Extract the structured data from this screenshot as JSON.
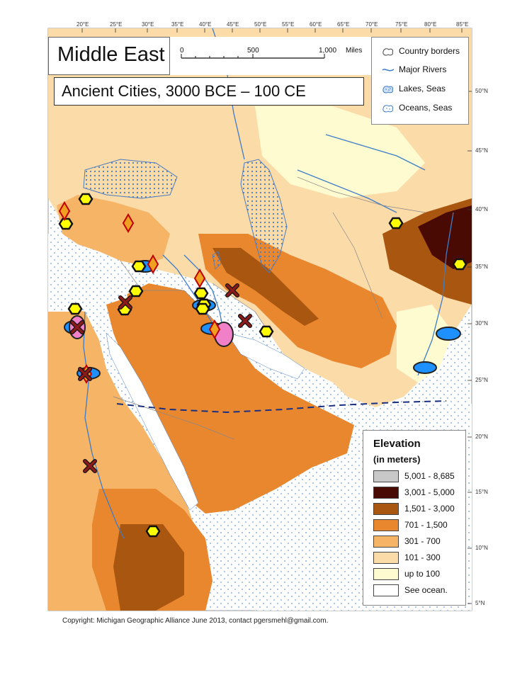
{
  "map": {
    "title": "Middle East",
    "subtitle": "Ancient Cities, 3000 BCE – 100 CE",
    "longitude_labels": [
      "20°E",
      "25°E",
      "30°E",
      "35°E",
      "40°E",
      "45°E",
      "50°E",
      "55°E",
      "60°E",
      "65°E",
      "70°E",
      "75°E",
      "80°E",
      "85°E"
    ],
    "latitude_labels": [
      "50°N",
      "45°N",
      "40°N",
      "35°N",
      "30°N",
      "25°N",
      "20°N",
      "15°N",
      "10°N",
      "5°N"
    ],
    "scale_bar": {
      "zero": "0",
      "mid": "500",
      "max": "1,000",
      "unit": "Miles"
    },
    "copyright": "Copyright:  Michigan Geographic Alliance June 2013, contact pgersmehl@gmail.com."
  },
  "legend": {
    "items": [
      {
        "label": "Country borders",
        "icon": "country-border-icon"
      },
      {
        "label": "Major Rivers",
        "icon": "river-icon"
      },
      {
        "label": "Lakes, Seas",
        "icon": "lake-icon"
      },
      {
        "label": "Oceans, Seas",
        "icon": "ocean-icon"
      }
    ]
  },
  "elevation": {
    "title": "Elevation",
    "subtitle": "(in meters)",
    "classes": [
      {
        "label": "5,001 - 8,685",
        "color": "#c8c8c8"
      },
      {
        "label": "3,001 - 5,000",
        "color": "#4a0a04"
      },
      {
        "label": "1,501 - 3,000",
        "color": "#a85610"
      },
      {
        "label": "701 - 1,500",
        "color": "#e9872f"
      },
      {
        "label": "301 - 700",
        "color": "#f5b466"
      },
      {
        "label": "101 - 300",
        "color": "#fbdba8"
      },
      {
        "label": "up to 100",
        "color": "#fffbd0"
      },
      {
        "label": "See ocean.",
        "color": "#ffffff"
      }
    ]
  },
  "colors": {
    "ocean": "#ffffff",
    "river": "#3d7cc9",
    "marker_yellow": "#ffff00",
    "marker_blue": "#1e90ff",
    "marker_pink": "#f080c8",
    "marker_orange": "#f0a020",
    "marker_x": "#8b1a1a"
  }
}
